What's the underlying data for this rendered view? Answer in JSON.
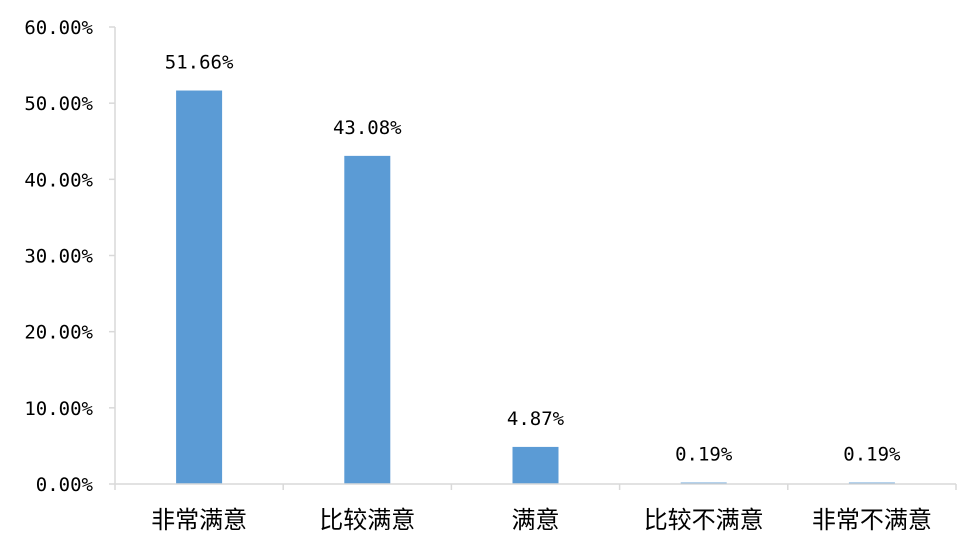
{
  "chart_data": {
    "type": "bar",
    "categories": [
      "非常满意",
      "比较满意",
      "满意",
      "比较不满意",
      "非常不满意"
    ],
    "values": [
      51.66,
      43.08,
      4.87,
      0.19,
      0.19
    ],
    "data_labels": [
      "51.66%",
      "43.08%",
      "4.87%",
      "0.19%",
      "0.19%"
    ],
    "y_ticks": [
      0,
      10,
      20,
      30,
      40,
      50,
      60
    ],
    "y_tick_labels": [
      "0.00%",
      "10.00%",
      "20.00%",
      "30.00%",
      "40.00%",
      "50.00%",
      "60.00%"
    ],
    "ylim": [
      0,
      60
    ],
    "grid": false,
    "bar_color": "#5B9BD5",
    "axis_color": "#D9D9D9"
  }
}
